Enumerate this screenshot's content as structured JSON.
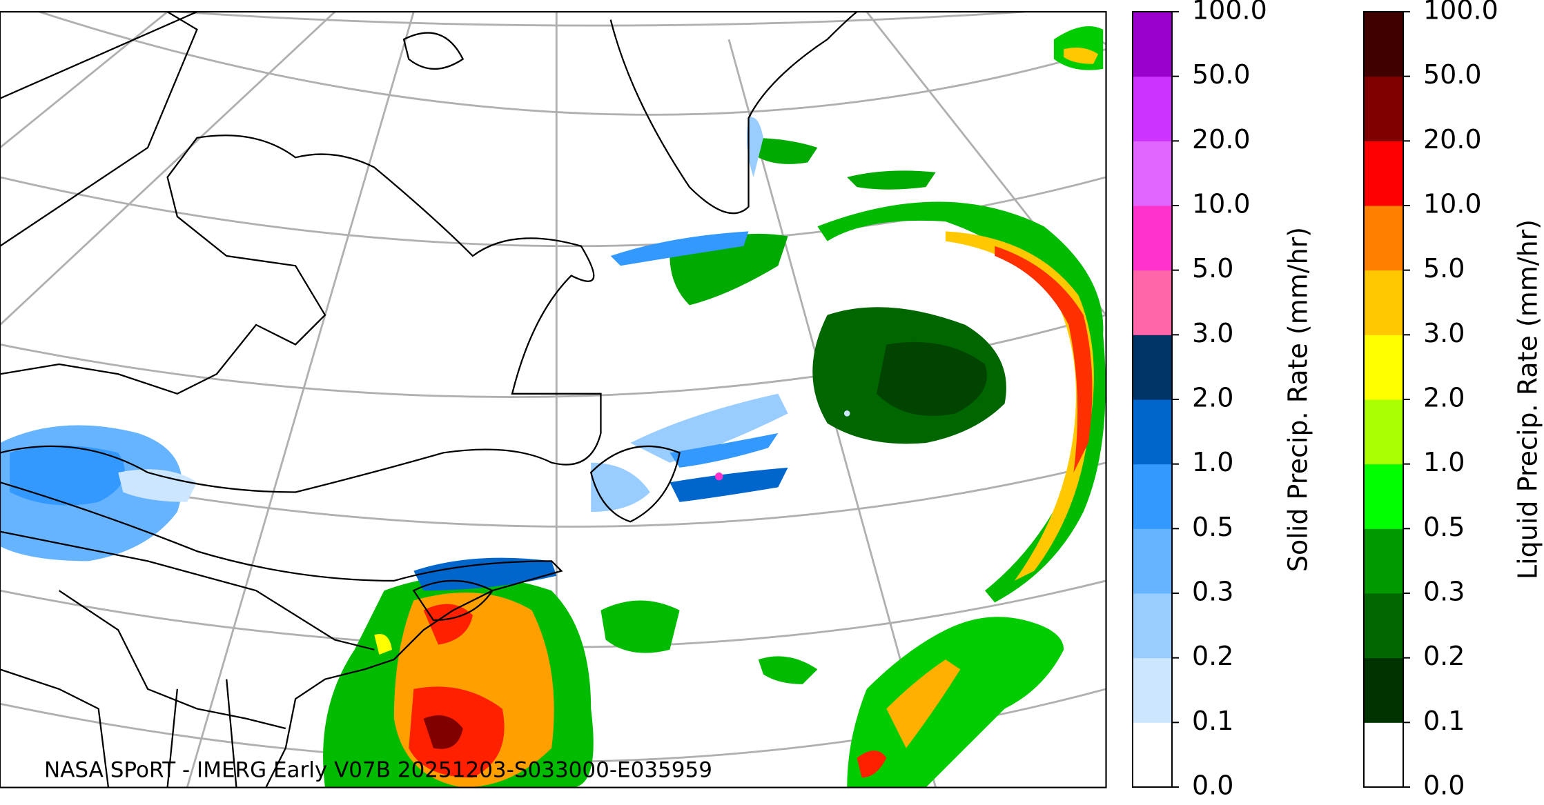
{
  "annotation": "NASA SPoRT - IMERG Early V07B 20251203-S033000-E035959",
  "colorbars": [
    {
      "label": "Solid Precip. Rate (mm/hr)",
      "ticks": [
        {
          "value": 0,
          "label": "0.0"
        },
        {
          "value": 0.1,
          "label": "0.1"
        },
        {
          "value": 0.2,
          "label": "0.2"
        },
        {
          "value": 0.3,
          "label": "0.3"
        },
        {
          "value": 0.5,
          "label": "0.5"
        },
        {
          "value": 1,
          "label": "1.0"
        },
        {
          "value": 2,
          "label": "2.0"
        },
        {
          "value": 3,
          "label": "3.0"
        },
        {
          "value": 5,
          "label": "5.0"
        },
        {
          "value": 10,
          "label": "10.0"
        },
        {
          "value": 20,
          "label": "20.0"
        },
        {
          "value": 50,
          "label": "50.0"
        },
        {
          "value": 100,
          "label": "100.0"
        }
      ],
      "colors": [
        "#ffffff",
        "#cce6ff",
        "#99ccff",
        "#66b3ff",
        "#3399ff",
        "#0066cc",
        "#003366",
        "#ff66aa",
        "#ff33cc",
        "#e066ff",
        "#cc33ff",
        "#9900cc"
      ]
    },
    {
      "label": "Liquid Precip. Rate (mm/hr)",
      "ticks": [
        {
          "value": 0,
          "label": "0.0"
        },
        {
          "value": 0.1,
          "label": "0.1"
        },
        {
          "value": 0.2,
          "label": "0.2"
        },
        {
          "value": 0.3,
          "label": "0.3"
        },
        {
          "value": 0.5,
          "label": "0.5"
        },
        {
          "value": 1,
          "label": "1.0"
        },
        {
          "value": 2,
          "label": "2.0"
        },
        {
          "value": 3,
          "label": "3.0"
        },
        {
          "value": 5,
          "label": "5.0"
        },
        {
          "value": 10,
          "label": "10.0"
        },
        {
          "value": 20,
          "label": "20.0"
        },
        {
          "value": 50,
          "label": "50.0"
        },
        {
          "value": 100,
          "label": "100.0"
        }
      ],
      "colors": [
        "#ffffff",
        "#003300",
        "#006600",
        "#009900",
        "#00ff00",
        "#aaff00",
        "#ffff00",
        "#ffc800",
        "#ff8000",
        "#ff0000",
        "#800000",
        "#400000"
      ]
    }
  ]
}
